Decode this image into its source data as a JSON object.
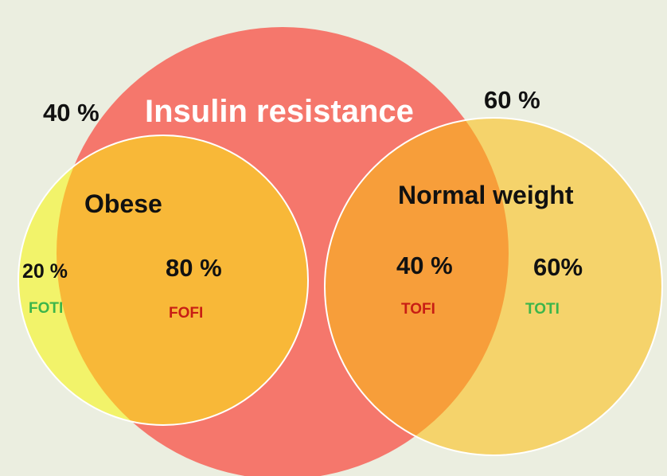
{
  "diagram": {
    "title": "Insulin resistance",
    "groups": {
      "obese": "Obese",
      "normal_weight": "Normal weight"
    },
    "percentages": {
      "insulin_resistance_obese": "40 %",
      "insulin_resistance_normal": "60 %",
      "obese_insulin_sensitive": "20 %",
      "obese_insulin_resistant": "80 %",
      "normal_insulin_resistant": "40 %",
      "normal_insulin_sensitive": "60%"
    },
    "codes": {
      "foti": "FOTI",
      "fofi": "FOFI",
      "tofi": "TOFI",
      "toti": "TOTI"
    },
    "colors": {
      "background": "#ebeee0",
      "insulin_resistance_circle": "#f5776c",
      "obese_circle": "#f2f36a",
      "normal_weight_circle": "#f5d36b",
      "overlap_obese": "#f8b838",
      "overlap_normal": "#f79e3a",
      "code_sensitive": "#3cb54a",
      "code_resistant": "#c81e14"
    }
  }
}
